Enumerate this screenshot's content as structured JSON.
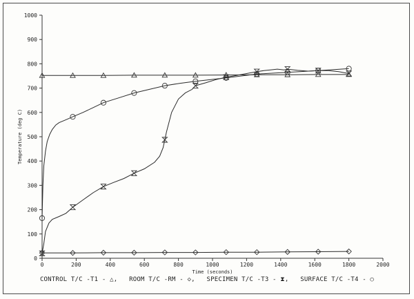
{
  "chart_data": {
    "type": "line",
    "xlabel": "Time (seconds)",
    "ylabel": "Temperature (deg C)",
    "xlim": [
      0,
      2000
    ],
    "ylim": [
      0,
      1000
    ],
    "xticks": [
      "0",
      "200",
      "400",
      "600",
      "800",
      "1000",
      "1200",
      "1400",
      "1600",
      "1800",
      "2000"
    ],
    "yticks": [
      "0",
      "100",
      "200",
      "300",
      "400",
      "500",
      "600",
      "700",
      "800",
      "900",
      "1000"
    ],
    "grid": false,
    "legend_position": "bottom",
    "series": [
      {
        "name": "CONTROL T/C -T1 - △",
        "marker": "triangle",
        "x": [
          0,
          180,
          360,
          540,
          720,
          900,
          1080,
          1260,
          1440,
          1620,
          1800
        ],
        "y": [
          752,
          752,
          752,
          753,
          753,
          753,
          754,
          755,
          755,
          756,
          756
        ],
        "markers_at": [
          0,
          180,
          360,
          540,
          720,
          900,
          1080,
          1260,
          1440,
          1620,
          1800
        ]
      },
      {
        "name": "ROOM T/C -RM - ◇",
        "marker": "diamond",
        "x": [
          0,
          180,
          360,
          540,
          720,
          900,
          1080,
          1260,
          1440,
          1620,
          1800
        ],
        "y": [
          22,
          22,
          23,
          23,
          24,
          24,
          25,
          25,
          26,
          27,
          28
        ],
        "markers_at": [
          0,
          180,
          360,
          540,
          720,
          900,
          1080,
          1260,
          1440,
          1620,
          1800
        ]
      },
      {
        "name": "SPECIMEN T/C -T3 - ⧗",
        "marker": "hourglass",
        "x": [
          0,
          10,
          20,
          40,
          60,
          100,
          140,
          180,
          240,
          300,
          360,
          420,
          480,
          540,
          600,
          660,
          690,
          710,
          730,
          760,
          800,
          840,
          880,
          900,
          960,
          1020,
          1080,
          1140,
          1200,
          1260,
          1300,
          1340,
          1380,
          1420,
          1440,
          1500,
          1560,
          1620,
          1680,
          1740,
          1800
        ],
        "y": [
          20,
          60,
          110,
          145,
          160,
          172,
          185,
          210,
          240,
          270,
          295,
          312,
          328,
          350,
          368,
          395,
          420,
          455,
          520,
          600,
          655,
          680,
          695,
          710,
          722,
          735,
          745,
          752,
          760,
          768,
          772,
          775,
          778,
          775,
          778,
          773,
          770,
          772,
          772,
          768,
          760
        ],
        "markers_at": [
          0,
          180,
          360,
          540,
          720,
          900,
          1080,
          1260,
          1440,
          1620,
          1800
        ]
      },
      {
        "name": "SURFACE T/C -T4 - ○",
        "marker": "circle",
        "x": [
          0,
          5,
          10,
          20,
          30,
          45,
          60,
          80,
          100,
          140,
          180,
          240,
          300,
          360,
          450,
          540,
          630,
          720,
          810,
          900,
          1080,
          1260,
          1440,
          1620,
          1800
        ],
        "y": [
          165,
          300,
          380,
          440,
          480,
          510,
          530,
          548,
          558,
          570,
          582,
          600,
          620,
          640,
          660,
          680,
          695,
          710,
          720,
          728,
          742,
          758,
          765,
          772,
          780
        ],
        "markers_at": [
          0,
          180,
          360,
          540,
          720,
          900,
          1080,
          1260,
          1440,
          1620,
          1800
        ]
      }
    ],
    "legend_text": {
      "control": "CONTROL T/C -T1 - △,",
      "room": "ROOM T/C -RM - ◇,",
      "specimen": "SPECIMEN T/C -T3 - ⧗,",
      "surface": "SURFACE T/C -T4 - ○"
    }
  }
}
